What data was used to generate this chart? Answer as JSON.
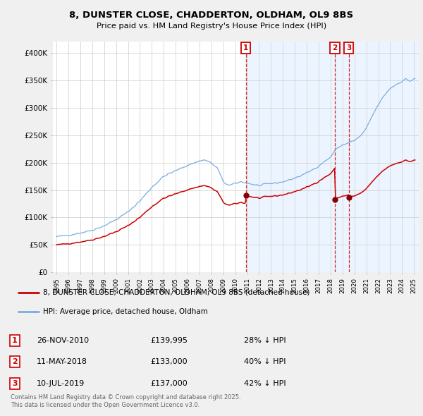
{
  "title1": "8, DUNSTER CLOSE, CHADDERTON, OLDHAM, OL9 8BS",
  "title2": "Price paid vs. HM Land Registry's House Price Index (HPI)",
  "background_color": "#f0f0f0",
  "plot_bg": "#ffffff",
  "legend_label_red": "8, DUNSTER CLOSE, CHADDERTON, OLDHAM, OL9 8BS (detached house)",
  "legend_label_blue": "HPI: Average price, detached house, Oldham",
  "footer": "Contains HM Land Registry data © Crown copyright and database right 2025.\nThis data is licensed under the Open Government Licence v3.0.",
  "transactions": [
    {
      "num": 1,
      "date_label": "26-NOV-2010",
      "price": "£139,995",
      "pct": "28% ↓ HPI",
      "date_x": 2010.9
    },
    {
      "num": 2,
      "date_label": "11-MAY-2018",
      "price": "£133,000",
      "pct": "40% ↓ HPI",
      "date_x": 2018.36
    },
    {
      "num": 3,
      "date_label": "10-JUL-2019",
      "price": "£137,000",
      "pct": "42% ↓ HPI",
      "date_x": 2019.53
    }
  ],
  "shade_start": 2010.9,
  "xlim": [
    1994.7,
    2025.4
  ],
  "ylim": [
    0,
    420000
  ],
  "yticks": [
    0,
    50000,
    100000,
    150000,
    200000,
    250000,
    300000,
    350000,
    400000
  ],
  "ytick_labels": [
    "£0",
    "£50K",
    "£100K",
    "£150K",
    "£200K",
    "£250K",
    "£300K",
    "£350K",
    "£400K"
  ],
  "xticks": [
    1995,
    1996,
    1997,
    1998,
    1999,
    2000,
    2001,
    2002,
    2003,
    2004,
    2005,
    2006,
    2007,
    2008,
    2009,
    2010,
    2011,
    2012,
    2013,
    2014,
    2015,
    2016,
    2017,
    2018,
    2019,
    2020,
    2021,
    2022,
    2023,
    2024,
    2025
  ]
}
